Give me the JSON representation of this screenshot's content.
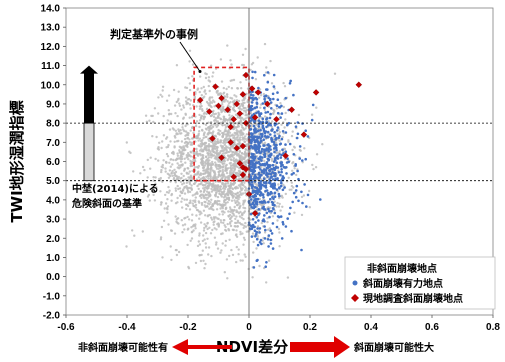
{
  "chart_data": {
    "type": "scatter",
    "xlabel": "NDVI差分",
    "ylabel": "TWI地形湿潤指標",
    "xlim": [
      -0.6,
      0.8
    ],
    "ylim": [
      -2.0,
      14.0
    ],
    "x_ticks": [
      "-0.6",
      "-0.4",
      "-0.2",
      "0",
      "0.2",
      "0.4",
      "0.6",
      "0.8"
    ],
    "y_ticks": [
      "-2.0",
      "-1.0",
      "0.0",
      "1.0",
      "2.0",
      "3.0",
      "4.0",
      "5.0",
      "6.0",
      "7.0",
      "8.0",
      "9.0",
      "10.0",
      "11.0",
      "12.0",
      "13.0",
      "14.0"
    ],
    "reference_lines_y": [
      5.0,
      8.0
    ],
    "x_axis_arrows": {
      "left": "非斜面崩壊可能性有",
      "right": "斜面崩壊可能性大"
    },
    "legend": {
      "placement": "bottom-right",
      "entries": [
        {
          "label": "非斜面崩壊地点",
          "marker": "gray-dot",
          "color": "#bdbdbd"
        },
        {
          "label": "斜面崩壊有力地点",
          "marker": "blue-dot",
          "color": "#4472c4"
        },
        {
          "label": "現地調査斜面崩壊地点",
          "marker": "red-diamond",
          "color": "#c00000"
        }
      ]
    },
    "annotations": {
      "outlier_box_label": "判定基準外の事例",
      "outlier_box_x": [
        -0.18,
        0.0
      ],
      "outlier_box_y": [
        5.0,
        10.9
      ],
      "criterion_label_line1": "中埜(2014)による",
      "criterion_label_line2": "危険斜面の基準",
      "criterion_bar_y": [
        5.0,
        8.0
      ],
      "arrow_y_from": 8.0,
      "arrow_y_to": 11.0
    },
    "series": [
      {
        "name": "現地調査斜面崩壊地点",
        "points": [
          [
            -0.16,
            9.2
          ],
          [
            -0.13,
            8.6
          ],
          [
            -0.11,
            9.9
          ],
          [
            -0.1,
            8.9
          ],
          [
            -0.09,
            9.3
          ],
          [
            -0.07,
            8.7
          ],
          [
            -0.06,
            7.8
          ],
          [
            -0.05,
            8.2
          ],
          [
            -0.04,
            9.0
          ],
          [
            -0.03,
            8.5
          ],
          [
            -0.02,
            9.5
          ],
          [
            -0.01,
            10.5
          ],
          [
            -0.01,
            8.0
          ],
          [
            -0.06,
            7.0
          ],
          [
            -0.12,
            7.2
          ],
          [
            -0.04,
            6.7
          ],
          [
            -0.09,
            6.2
          ],
          [
            -0.03,
            5.9
          ],
          [
            -0.02,
            5.7
          ],
          [
            -0.01,
            5.6
          ],
          [
            -0.05,
            5.2
          ],
          [
            -0.02,
            5.3
          ],
          [
            -0.02,
            6.8
          ],
          [
            0.01,
            9.8
          ],
          [
            0.03,
            9.6
          ],
          [
            0.06,
            9.0
          ],
          [
            0.02,
            8.3
          ],
          [
            0.09,
            8.2
          ],
          [
            0.12,
            6.3
          ],
          [
            0.14,
            8.7
          ],
          [
            0.22,
            9.6
          ],
          [
            0.18,
            7.4
          ],
          [
            0.36,
            10.0
          ],
          [
            0.0,
            4.3
          ],
          [
            0.02,
            3.3
          ]
        ]
      }
    ]
  }
}
